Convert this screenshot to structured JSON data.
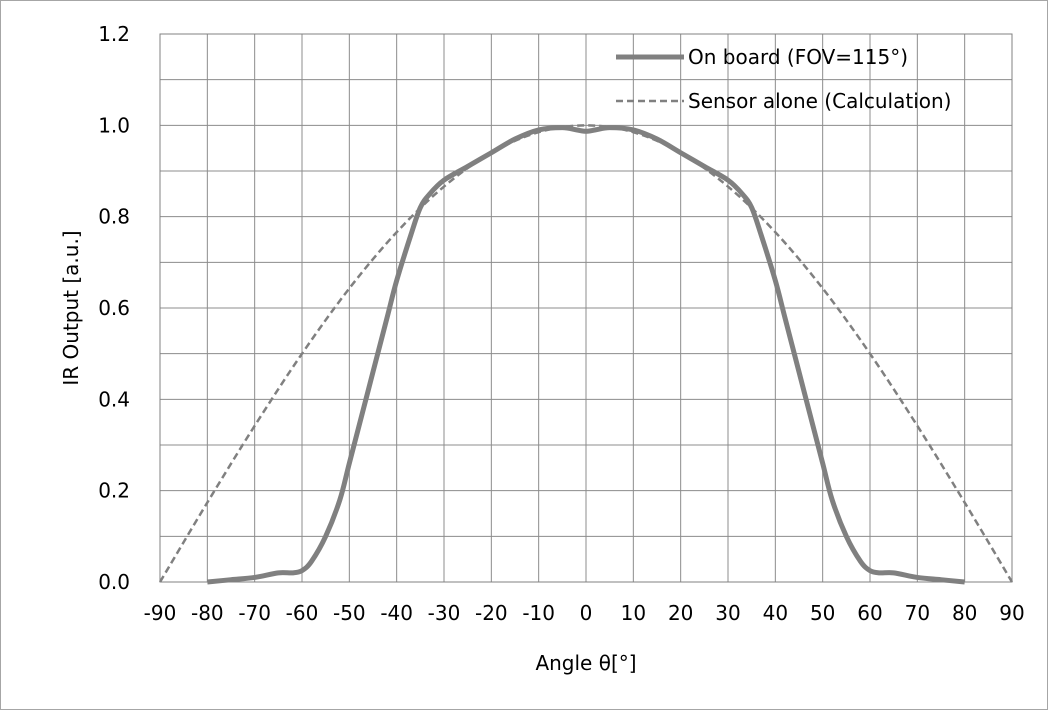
{
  "chart_data": {
    "type": "line",
    "title": "",
    "xlabel": "Angle θ[°]",
    "ylabel": "IR Output [a.u.]",
    "xlim": [
      -90,
      90
    ],
    "ylim": [
      0,
      1.2
    ],
    "x_ticks": [
      -90,
      -80,
      -70,
      -60,
      -50,
      -40,
      -30,
      -20,
      -10,
      0,
      10,
      20,
      30,
      40,
      50,
      60,
      70,
      80,
      90
    ],
    "y_ticks": [
      0,
      0.2,
      0.4,
      0.6,
      0.8,
      1.0,
      1.2
    ],
    "x_tick_labels": [
      "-90",
      "-80",
      "-70",
      "-60",
      "-50",
      "-40",
      "-30",
      "-20",
      "-10",
      "0",
      "10",
      "20",
      "30",
      "40",
      "50",
      "60",
      "70",
      "80",
      "90"
    ],
    "y_tick_labels": [
      "0.0",
      "0.2",
      "0.4",
      "0.6",
      "0.8",
      "1.0",
      "1.2"
    ],
    "grid": true,
    "legend_position": "top-right",
    "series": [
      {
        "name": "On board (FOV=115°)",
        "style": "solid",
        "color": "#808080",
        "x": [
          -80,
          -75,
          -70,
          -65,
          -62,
          -60,
          -58,
          -55,
          -52,
          -50,
          -47,
          -45,
          -42,
          -40,
          -37,
          -35,
          -33,
          -30,
          -25,
          -20,
          -15,
          -10,
          -5,
          -2,
          0,
          2,
          5,
          10,
          15,
          20,
          25,
          30,
          33,
          35,
          37,
          40,
          42,
          45,
          47,
          50,
          52,
          55,
          58,
          60,
          62,
          65,
          70,
          75,
          80
        ],
        "y": [
          0.0,
          0.005,
          0.01,
          0.02,
          0.02,
          0.025,
          0.045,
          0.1,
          0.18,
          0.26,
          0.38,
          0.46,
          0.58,
          0.66,
          0.76,
          0.82,
          0.85,
          0.88,
          0.91,
          0.94,
          0.97,
          0.99,
          0.995,
          0.99,
          0.987,
          0.99,
          0.995,
          0.99,
          0.97,
          0.94,
          0.91,
          0.88,
          0.85,
          0.82,
          0.76,
          0.66,
          0.58,
          0.46,
          0.38,
          0.26,
          0.18,
          0.1,
          0.045,
          0.025,
          0.02,
          0.02,
          0.01,
          0.005,
          0.0
        ]
      },
      {
        "name": "Sensor alone (Calculation)",
        "style": "dashed",
        "color": "#808080",
        "x": [
          -90,
          -80,
          -70,
          -60,
          -50,
          -40,
          -30,
          -20,
          -10,
          0,
          10,
          20,
          30,
          40,
          50,
          60,
          70,
          80,
          90
        ],
        "y": [
          0.0,
          0.174,
          0.342,
          0.5,
          0.643,
          0.766,
          0.866,
          0.94,
          0.985,
          1.0,
          0.985,
          0.94,
          0.866,
          0.766,
          0.643,
          0.5,
          0.342,
          0.174,
          0.0
        ]
      }
    ]
  }
}
